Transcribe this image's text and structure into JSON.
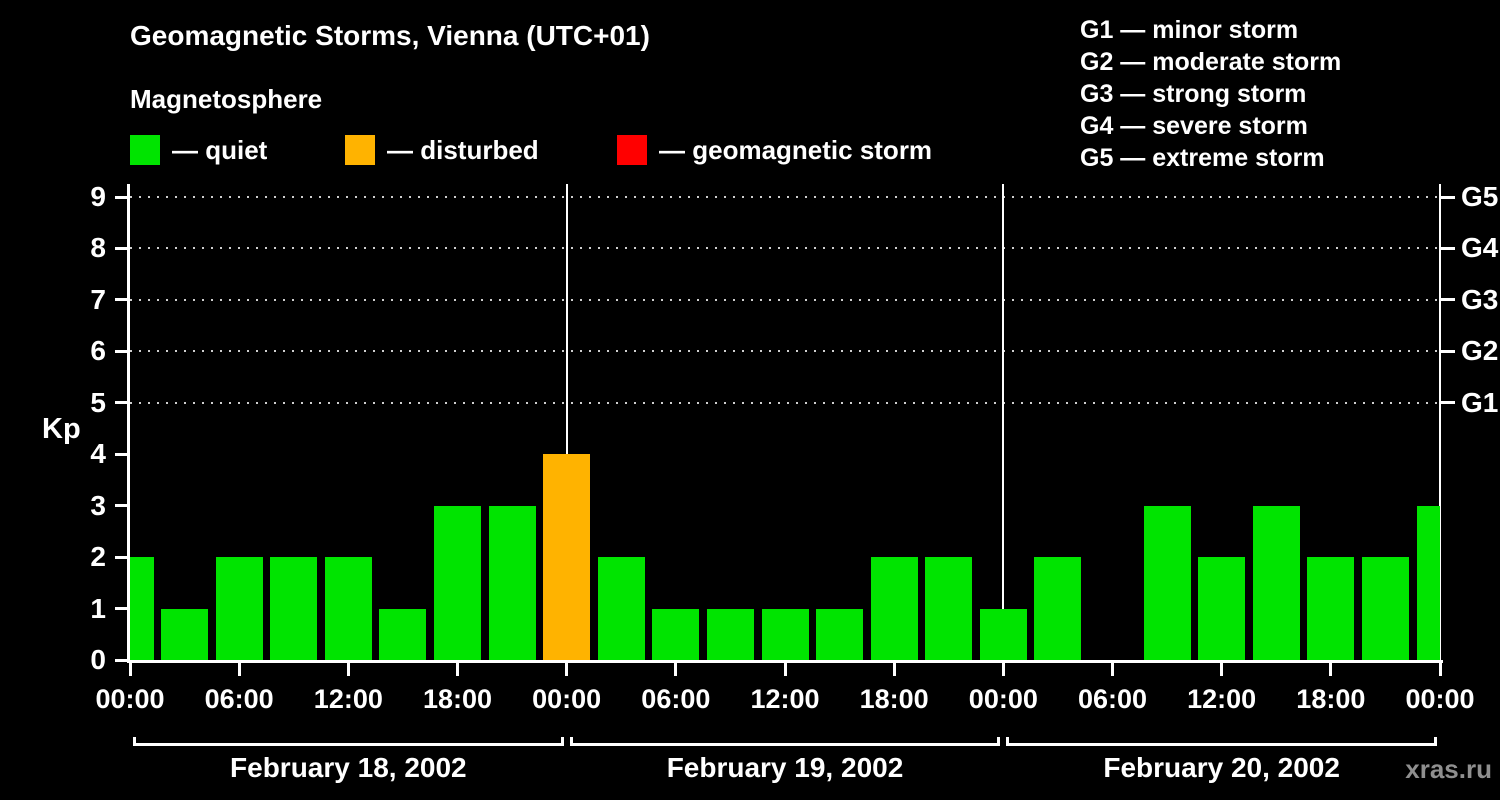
{
  "header": {
    "title": "Geomagnetic Storms, Vienna (UTC+01)",
    "subtitle": "Magnetosphere"
  },
  "legend": {
    "items": [
      {
        "key": "quiet",
        "label": "— quiet",
        "color": "#00e400"
      },
      {
        "key": "disturbed",
        "label": "— disturbed",
        "color": "#ffb300"
      },
      {
        "key": "storm",
        "label": "— geomagnetic storm",
        "color": "#ff0000"
      }
    ]
  },
  "g_legend": [
    "G1 — minor storm",
    "G2 — moderate storm",
    "G3 — strong storm",
    "G4 — severe storm",
    "G5 — extreme storm"
  ],
  "watermark": "xras.ru",
  "chart_data": {
    "type": "bar",
    "title": "Geomagnetic Storms, Vienna (UTC+01)",
    "ylabel": "Kp",
    "ylim": [
      0,
      9
    ],
    "yticks": [
      0,
      1,
      2,
      3,
      4,
      5,
      6,
      7,
      8,
      9
    ],
    "grid_levels_kp": [
      5,
      6,
      7,
      8,
      9
    ],
    "right_axis_labels": [
      {
        "kp": 9,
        "label": "G5"
      },
      {
        "kp": 8,
        "label": "G4"
      },
      {
        "kp": 7,
        "label": "G3"
      },
      {
        "kp": 6,
        "label": "G2"
      },
      {
        "kp": 5,
        "label": "G1"
      }
    ],
    "x_hours_total": 72,
    "bar_interval_hours": 3,
    "x_ticks": [
      {
        "hour": 0,
        "label": "00:00"
      },
      {
        "hour": 6,
        "label": "06:00"
      },
      {
        "hour": 12,
        "label": "12:00"
      },
      {
        "hour": 18,
        "label": "18:00"
      },
      {
        "hour": 24,
        "label": "00:00"
      },
      {
        "hour": 30,
        "label": "06:00"
      },
      {
        "hour": 36,
        "label": "12:00"
      },
      {
        "hour": 42,
        "label": "18:00"
      },
      {
        "hour": 48,
        "label": "00:00"
      },
      {
        "hour": 54,
        "label": "06:00"
      },
      {
        "hour": 60,
        "label": "12:00"
      },
      {
        "hour": 66,
        "label": "18:00"
      },
      {
        "hour": 72,
        "label": "00:00"
      }
    ],
    "day_boundaries_hours": [
      24,
      48,
      72
    ],
    "days": [
      {
        "start_hour": 0,
        "label": "February 18, 2002"
      },
      {
        "start_hour": 24,
        "label": "February 19, 2002"
      },
      {
        "start_hour": 48,
        "label": "February 20, 2002"
      }
    ],
    "points": [
      {
        "hour": 0,
        "kp": 2,
        "status": "quiet"
      },
      {
        "hour": 3,
        "kp": 1,
        "status": "quiet"
      },
      {
        "hour": 6,
        "kp": 2,
        "status": "quiet"
      },
      {
        "hour": 9,
        "kp": 2,
        "status": "quiet"
      },
      {
        "hour": 12,
        "kp": 2,
        "status": "quiet"
      },
      {
        "hour": 15,
        "kp": 1,
        "status": "quiet"
      },
      {
        "hour": 18,
        "kp": 3,
        "status": "quiet"
      },
      {
        "hour": 21,
        "kp": 3,
        "status": "quiet"
      },
      {
        "hour": 24,
        "kp": 4,
        "status": "disturbed"
      },
      {
        "hour": 27,
        "kp": 2,
        "status": "quiet"
      },
      {
        "hour": 30,
        "kp": 1,
        "status": "quiet"
      },
      {
        "hour": 33,
        "kp": 1,
        "status": "quiet"
      },
      {
        "hour": 36,
        "kp": 1,
        "status": "quiet"
      },
      {
        "hour": 39,
        "kp": 1,
        "status": "quiet"
      },
      {
        "hour": 42,
        "kp": 2,
        "status": "quiet"
      },
      {
        "hour": 45,
        "kp": 2,
        "status": "quiet"
      },
      {
        "hour": 48,
        "kp": 1,
        "status": "quiet"
      },
      {
        "hour": 51,
        "kp": 2,
        "status": "quiet"
      },
      {
        "hour": 54,
        "kp": 0,
        "status": "quiet"
      },
      {
        "hour": 57,
        "kp": 3,
        "status": "quiet"
      },
      {
        "hour": 60,
        "kp": 2,
        "status": "quiet"
      },
      {
        "hour": 63,
        "kp": 3,
        "status": "quiet"
      },
      {
        "hour": 66,
        "kp": 2,
        "status": "quiet"
      },
      {
        "hour": 69,
        "kp": 2,
        "status": "quiet"
      },
      {
        "hour": 72,
        "kp": 3,
        "status": "quiet"
      }
    ],
    "status_colors": {
      "quiet": "#00e400",
      "disturbed": "#ffb300",
      "storm": "#ff0000"
    }
  }
}
